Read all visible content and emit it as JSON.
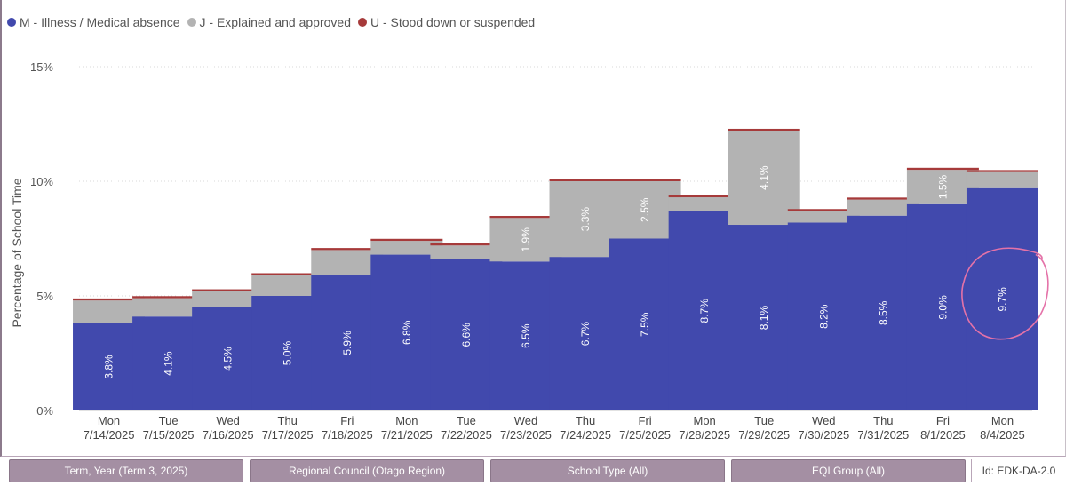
{
  "colors": {
    "m": "#4149ad",
    "j": "#b3b3b3",
    "u": "#a63a3a",
    "grid": "#d8d8d8",
    "text": "#555555",
    "annotation": "#e472a8",
    "filter_bg": "#a48fa3"
  },
  "chart_data": {
    "type": "bar",
    "stacked": true,
    "ylabel": "Percentage of School Time",
    "ylim": [
      0,
      15
    ],
    "yticks": [
      0,
      5,
      10,
      15
    ],
    "ytick_labels": [
      "0%",
      "5%",
      "10%",
      "15%"
    ],
    "grid": true,
    "legend_position": "top-left",
    "categories": [
      [
        "Mon",
        "7/14/2025"
      ],
      [
        "Tue",
        "7/15/2025"
      ],
      [
        "Wed",
        "7/16/2025"
      ],
      [
        "Thu",
        "7/17/2025"
      ],
      [
        "Fri",
        "7/18/2025"
      ],
      [
        "Mon",
        "7/21/2025"
      ],
      [
        "Tue",
        "7/22/2025"
      ],
      [
        "Wed",
        "7/23/2025"
      ],
      [
        "Thu",
        "7/24/2025"
      ],
      [
        "Fri",
        "7/25/2025"
      ],
      [
        "Mon",
        "7/28/2025"
      ],
      [
        "Tue",
        "7/29/2025"
      ],
      [
        "Wed",
        "7/30/2025"
      ],
      [
        "Thu",
        "7/31/2025"
      ],
      [
        "Fri",
        "8/1/2025"
      ],
      [
        "Mon",
        "8/4/2025"
      ]
    ],
    "series": [
      {
        "key": "m",
        "name": "M - Illness / Medical absence",
        "values": [
          3.8,
          4.1,
          4.5,
          5.0,
          5.9,
          6.8,
          6.6,
          6.5,
          6.7,
          7.5,
          8.7,
          8.1,
          8.2,
          8.5,
          9.0,
          9.7
        ],
        "labels": [
          "3.8%",
          "4.1%",
          "4.5%",
          "5.0%",
          "5.9%",
          "6.8%",
          "6.6%",
          "6.5%",
          "6.7%",
          "7.5%",
          "8.7%",
          "8.1%",
          "8.2%",
          "8.5%",
          "9.0%",
          "9.7%"
        ]
      },
      {
        "key": "j",
        "name": "J - Explained and approved",
        "values": [
          1.0,
          0.8,
          0.7,
          0.9,
          1.1,
          0.6,
          0.6,
          1.9,
          3.3,
          2.5,
          0.6,
          4.1,
          0.5,
          0.7,
          1.5,
          0.7
        ],
        "labels": [
          "",
          "",
          "",
          "",
          "",
          "",
          "",
          "1.9%",
          "3.3%",
          "2.5%",
          "",
          "4.1%",
          "",
          "",
          "1.5%",
          ""
        ]
      },
      {
        "key": "u",
        "name": "U - Stood down or suspended",
        "values": [
          0.05,
          0.05,
          0.05,
          0.05,
          0.05,
          0.05,
          0.05,
          0.05,
          0.05,
          0.05,
          0.05,
          0.05,
          0.05,
          0.05,
          0.05,
          0.05
        ],
        "labels": [
          "",
          "",
          "",
          "",
          "",
          "",
          "",
          "",
          "",
          "",
          "",
          "",
          "",
          "",
          "",
          ""
        ]
      }
    ],
    "annotation": {
      "type": "hand-drawn circle",
      "category_index": 15,
      "around_value_label": "9.7%"
    }
  },
  "footer": {
    "filters": [
      "Term, Year (Term 3, 2025)",
      "Regional Council (Otago Region)",
      "School Type (All)",
      "EQI Group (All)"
    ],
    "id": "Id: EDK-DA-2.0"
  }
}
